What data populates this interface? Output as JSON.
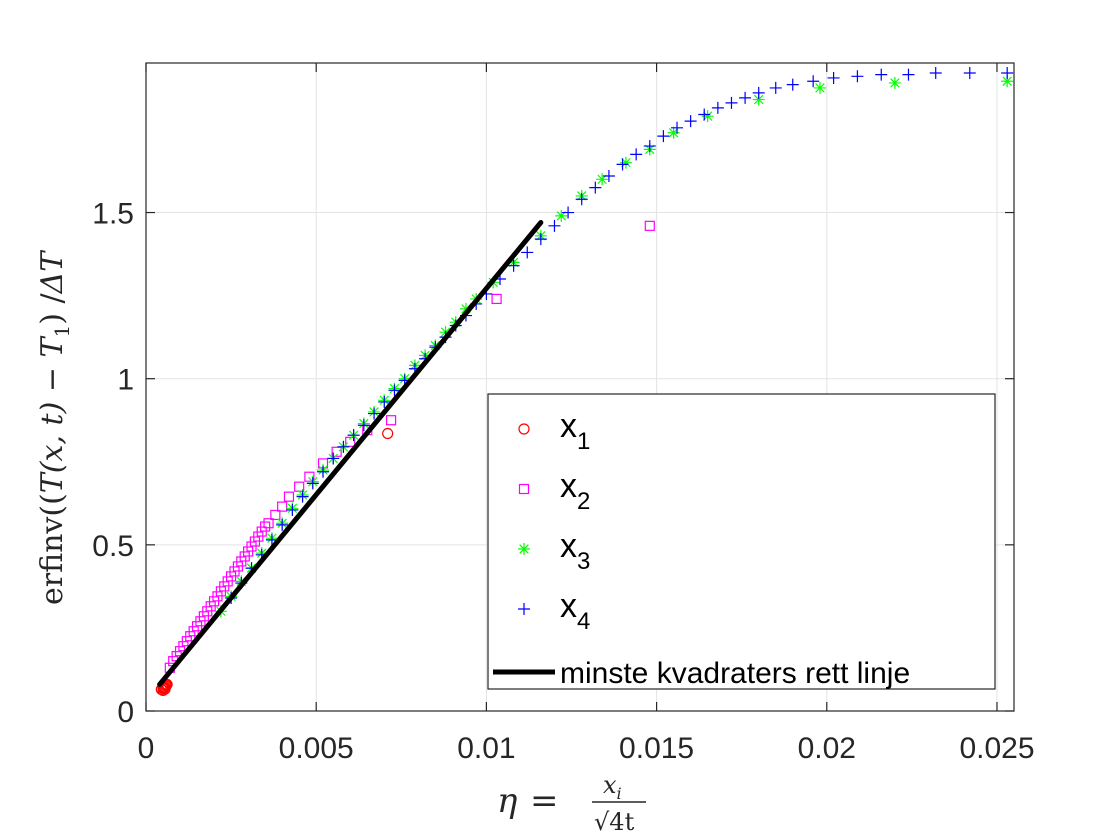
{
  "chart_data": {
    "type": "scatter",
    "xlabel": {
      "lhs": "η",
      "eq": "=",
      "num": "x",
      "num_sub": "i",
      "den": "√4t"
    },
    "ylabel": {
      "prefix": "erfinv((",
      "T1": "T",
      "args": "(x, t)",
      "minus": " − ",
      "T2": "T",
      "T2_sub": "1",
      "mid": ") /",
      "delta": "ΔT"
    },
    "xlim": [
      0,
      0.0255
    ],
    "ylim": [
      0,
      1.95
    ],
    "xticks": [
      0,
      0.005,
      0.01,
      0.015,
      0.02,
      0.025
    ],
    "xtick_labels": [
      "0",
      "0.005",
      "0.01",
      "0.015",
      "0.02",
      "0.025"
    ],
    "yticks": [
      0,
      0.5,
      1,
      1.5
    ],
    "ytick_labels": [
      "0",
      "0.5",
      "1",
      "1.5"
    ],
    "grid": true,
    "legend_position": "lower-right",
    "series": [
      {
        "name": "x",
        "sub": "1",
        "marker": "circle",
        "color": "#ff0000",
        "points": [
          [
            0.00045,
            0.065
          ],
          [
            0.0005,
            0.068
          ],
          [
            0.00052,
            0.07
          ],
          [
            0.00055,
            0.072
          ],
          [
            0.00058,
            0.075
          ],
          [
            0.0006,
            0.078
          ],
          [
            0.00062,
            0.08
          ],
          [
            0.0005,
            0.062
          ],
          [
            0.00056,
            0.066
          ],
          [
            0.0071,
            0.835
          ]
        ]
      },
      {
        "name": "x",
        "sub": "2",
        "marker": "square",
        "color": "#ff00ff",
        "points": [
          [
            0.0007,
            0.13
          ],
          [
            0.0008,
            0.15
          ],
          [
            0.0009,
            0.165
          ],
          [
            0.001,
            0.18
          ],
          [
            0.0011,
            0.195
          ],
          [
            0.0012,
            0.21
          ],
          [
            0.0013,
            0.225
          ],
          [
            0.0014,
            0.24
          ],
          [
            0.0015,
            0.255
          ],
          [
            0.0016,
            0.27
          ],
          [
            0.0017,
            0.285
          ],
          [
            0.0018,
            0.3
          ],
          [
            0.0019,
            0.315
          ],
          [
            0.002,
            0.33
          ],
          [
            0.0021,
            0.345
          ],
          [
            0.0022,
            0.36
          ],
          [
            0.0023,
            0.375
          ],
          [
            0.0024,
            0.39
          ],
          [
            0.0025,
            0.405
          ],
          [
            0.0026,
            0.42
          ],
          [
            0.0027,
            0.435
          ],
          [
            0.0028,
            0.45
          ],
          [
            0.0029,
            0.465
          ],
          [
            0.003,
            0.48
          ],
          [
            0.0031,
            0.495
          ],
          [
            0.0032,
            0.51
          ],
          [
            0.0033,
            0.525
          ],
          [
            0.0034,
            0.54
          ],
          [
            0.0035,
            0.555
          ],
          [
            0.0036,
            0.565
          ],
          [
            0.0038,
            0.59
          ],
          [
            0.004,
            0.615
          ],
          [
            0.0042,
            0.645
          ],
          [
            0.0045,
            0.675
          ],
          [
            0.0048,
            0.705
          ],
          [
            0.0052,
            0.745
          ],
          [
            0.0056,
            0.78
          ],
          [
            0.006,
            0.81
          ],
          [
            0.0065,
            0.845
          ],
          [
            0.0072,
            0.875
          ],
          [
            0.0103,
            1.24
          ],
          [
            0.0148,
            1.46
          ]
        ]
      },
      {
        "name": "x",
        "sub": "3",
        "marker": "asterisk",
        "color": "#00ff00",
        "points": [
          [
            0.0022,
            0.3
          ],
          [
            0.0025,
            0.345
          ],
          [
            0.0028,
            0.39
          ],
          [
            0.0031,
            0.43
          ],
          [
            0.0034,
            0.475
          ],
          [
            0.0037,
            0.52
          ],
          [
            0.004,
            0.565
          ],
          [
            0.0043,
            0.61
          ],
          [
            0.0046,
            0.65
          ],
          [
            0.0049,
            0.69
          ],
          [
            0.0052,
            0.725
          ],
          [
            0.0055,
            0.76
          ],
          [
            0.0058,
            0.795
          ],
          [
            0.0061,
            0.83
          ],
          [
            0.0064,
            0.865
          ],
          [
            0.0067,
            0.9
          ],
          [
            0.007,
            0.935
          ],
          [
            0.0073,
            0.97
          ],
          [
            0.0076,
            1.0
          ],
          [
            0.0079,
            1.04
          ],
          [
            0.0082,
            1.07
          ],
          [
            0.0085,
            1.1
          ],
          [
            0.0088,
            1.14
          ],
          [
            0.0091,
            1.17
          ],
          [
            0.0094,
            1.21
          ],
          [
            0.0097,
            1.24
          ],
          [
            0.0102,
            1.29
          ],
          [
            0.0108,
            1.35
          ],
          [
            0.0116,
            1.43
          ],
          [
            0.0122,
            1.49
          ],
          [
            0.0128,
            1.55
          ],
          [
            0.0134,
            1.6
          ],
          [
            0.0141,
            1.65
          ],
          [
            0.0148,
            1.69
          ],
          [
            0.0155,
            1.74
          ],
          [
            0.0165,
            1.79
          ],
          [
            0.018,
            1.84
          ],
          [
            0.0198,
            1.875
          ],
          [
            0.022,
            1.89
          ],
          [
            0.0253,
            1.895
          ]
        ]
      },
      {
        "name": "x",
        "sub": "4",
        "marker": "plus",
        "color": "#0000ff",
        "points": [
          [
            0.0025,
            0.34
          ],
          [
            0.0028,
            0.385
          ],
          [
            0.0031,
            0.43
          ],
          [
            0.0034,
            0.47
          ],
          [
            0.0037,
            0.515
          ],
          [
            0.004,
            0.56
          ],
          [
            0.0043,
            0.605
          ],
          [
            0.0046,
            0.645
          ],
          [
            0.0049,
            0.685
          ],
          [
            0.0052,
            0.72
          ],
          [
            0.0055,
            0.76
          ],
          [
            0.0058,
            0.795
          ],
          [
            0.0061,
            0.83
          ],
          [
            0.0064,
            0.86
          ],
          [
            0.0067,
            0.895
          ],
          [
            0.007,
            0.93
          ],
          [
            0.0073,
            0.965
          ],
          [
            0.0076,
            0.995
          ],
          [
            0.0079,
            1.03
          ],
          [
            0.0082,
            1.06
          ],
          [
            0.0085,
            1.095
          ],
          [
            0.0088,
            1.125
          ],
          [
            0.0091,
            1.16
          ],
          [
            0.0094,
            1.19
          ],
          [
            0.0097,
            1.225
          ],
          [
            0.01,
            1.255
          ],
          [
            0.0104,
            1.3
          ],
          [
            0.0108,
            1.34
          ],
          [
            0.0112,
            1.38
          ],
          [
            0.0116,
            1.42
          ],
          [
            0.012,
            1.46
          ],
          [
            0.0124,
            1.5
          ],
          [
            0.0128,
            1.54
          ],
          [
            0.0132,
            1.575
          ],
          [
            0.0136,
            1.61
          ],
          [
            0.014,
            1.645
          ],
          [
            0.0144,
            1.675
          ],
          [
            0.0148,
            1.7
          ],
          [
            0.0152,
            1.73
          ],
          [
            0.0156,
            1.755
          ],
          [
            0.016,
            1.775
          ],
          [
            0.0164,
            1.795
          ],
          [
            0.0168,
            1.815
          ],
          [
            0.0172,
            1.83
          ],
          [
            0.0176,
            1.845
          ],
          [
            0.018,
            1.86
          ],
          [
            0.0185,
            1.875
          ],
          [
            0.019,
            1.885
          ],
          [
            0.0196,
            1.895
          ],
          [
            0.0202,
            1.905
          ],
          [
            0.0209,
            1.91
          ],
          [
            0.0216,
            1.915
          ],
          [
            0.0224,
            1.915
          ],
          [
            0.0232,
            1.92
          ],
          [
            0.0242,
            1.92
          ],
          [
            0.0253,
            1.92
          ]
        ]
      },
      {
        "name": "minste kvadraters rett linje",
        "type": "line",
        "color": "#000000",
        "points": [
          [
            0.0004,
            0.08
          ],
          [
            0.0116,
            1.47
          ]
        ]
      }
    ]
  }
}
